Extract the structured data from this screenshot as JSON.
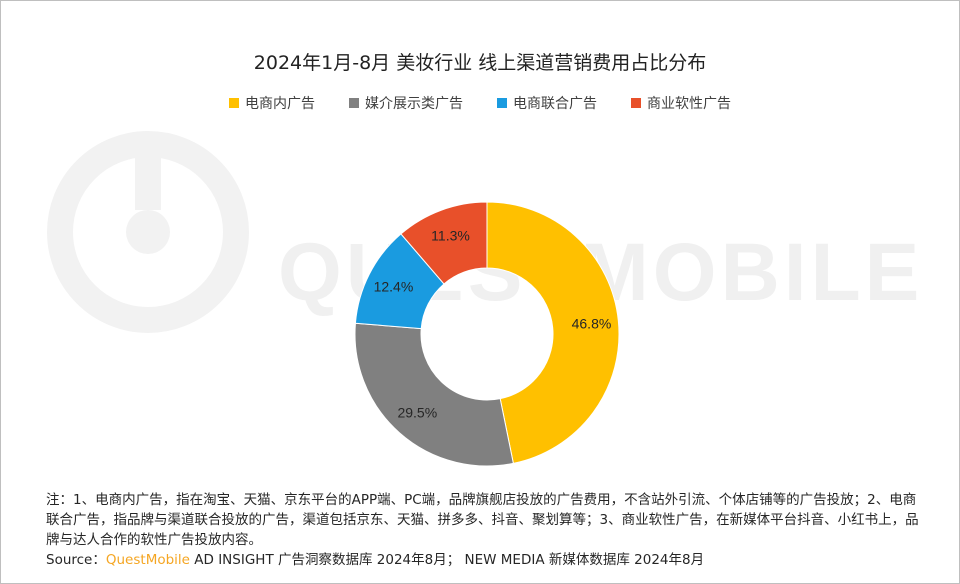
{
  "title": "2024年1月-8月 美妆行业 线上渠道营销费用占比分布",
  "watermark_text": "QUESTMOBILE",
  "colors": {
    "ecommerce_internal": "#ffc000",
    "media_display": "#808080",
    "ecommerce_joint": "#1a9be0",
    "soft_ad": "#e8502a"
  },
  "chart_data": {
    "type": "pie",
    "donut": true,
    "title": "2024年1月-8月 美妆行业 线上渠道营销费用占比分布",
    "legend_position": "top",
    "slices": [
      {
        "name": "电商内广告",
        "value": 46.8,
        "label": "46.8%",
        "color": "#ffc000"
      },
      {
        "name": "媒介展示类广告",
        "value": 29.5,
        "label": "29.5%",
        "color": "#808080"
      },
      {
        "name": "电商联合广告",
        "value": 12.4,
        "label": "12.4%",
        "color": "#1a9be0"
      },
      {
        "name": "商业软性广告",
        "value": 11.3,
        "label": "11.3%",
        "color": "#e8502a"
      }
    ]
  },
  "notes": "注：1、电商内广告，指在淘宝、天猫、京东平台的APP端、PC端，品牌旗舰店投放的广告费用，不含站外引流、个体店铺等的广告投放；2、电商联合广告，指品牌与渠道联合投放的广告，渠道包括京东、天猫、拼多多、抖音、聚划算等；3、商业软性广告，在新媒体平台抖音、小红书上，品牌与达人合作的软性广告投放内容。",
  "source": {
    "prefix": "Source：",
    "brand": "QuestMobile",
    "rest": " AD INSIGHT 广告洞察数据库 2024年8月； NEW MEDIA 新媒体数据库 2024年8月"
  }
}
